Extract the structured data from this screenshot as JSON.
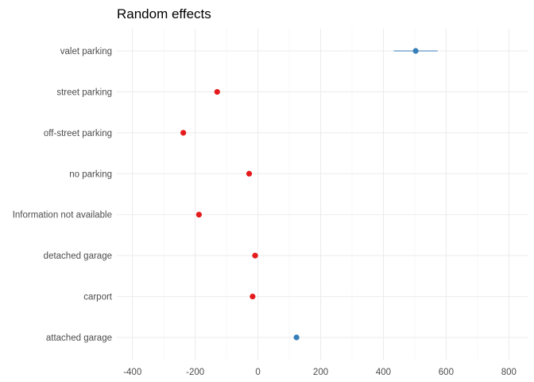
{
  "chart_data": {
    "type": "scatter",
    "title": "Random effects",
    "xlabel": "",
    "ylabel": "",
    "xlim": [
      -450,
      860
    ],
    "x_ticks": [
      -400,
      -200,
      0,
      200,
      400,
      600,
      800
    ],
    "x_tick_labels": [
      "-400",
      "-200",
      "0",
      "200",
      "400",
      "600",
      "800"
    ],
    "categories": [
      "valet parking",
      "street parking",
      "off-street parking",
      "no parking",
      "Information not available",
      "detached garage",
      "carport",
      "attached garage"
    ],
    "points": [
      {
        "category": "valet parking",
        "value": 503,
        "lower": 433,
        "upper": 573,
        "color": "#377eb8"
      },
      {
        "category": "street parking",
        "value": -130,
        "lower": -138,
        "upper": -122,
        "color": "#e41a1c"
      },
      {
        "category": "off-street parking",
        "value": -238,
        "lower": -246,
        "upper": -230,
        "color": "#e41a1c"
      },
      {
        "category": "no parking",
        "value": -28,
        "lower": -36,
        "upper": -20,
        "color": "#e41a1c"
      },
      {
        "category": "Information not available",
        "value": -188,
        "lower": -196,
        "upper": -180,
        "color": "#e41a1c"
      },
      {
        "category": "detached garage",
        "value": -9,
        "lower": -15,
        "upper": -3,
        "color": "#e41a1c"
      },
      {
        "category": "carport",
        "value": -17,
        "lower": -23,
        "upper": -11,
        "color": "#e41a1c"
      },
      {
        "category": "attached garage",
        "value": 123,
        "lower": 117,
        "upper": 129,
        "color": "#377eb8"
      }
    ],
    "grid": true,
    "legend": "none"
  }
}
